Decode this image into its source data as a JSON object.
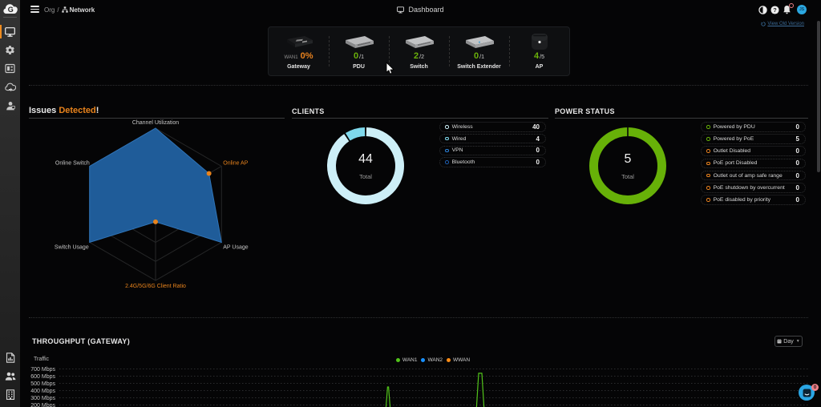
{
  "topbar": {
    "breadcrumb": {
      "org": "Org",
      "separator": "/",
      "network": "Network"
    },
    "title": "Dashboard",
    "user_initials": "JS"
  },
  "view_old_version": {
    "label": "View Old Version"
  },
  "device_summary": {
    "items": [
      {
        "type": "gateway",
        "label": "Gateway",
        "stat_prefix": "WAN1",
        "stat_value": "0%"
      },
      {
        "type": "pdu",
        "label": "PDU",
        "online": "0",
        "total": "/1"
      },
      {
        "type": "switch",
        "label": "Switch",
        "online": "2",
        "total": "/2"
      },
      {
        "type": "switch-extender",
        "label": "Switch Extender",
        "online": "0",
        "total": "/1"
      },
      {
        "type": "ap",
        "label": "AP",
        "online": "4",
        "total": "/5"
      }
    ]
  },
  "issues": {
    "title_normal": "Issues",
    "title_highlight": "Detected",
    "title_suffix": "!"
  },
  "clients": {
    "header": "CLIENTS",
    "center_value": "44",
    "center_label": "Total",
    "legend": [
      {
        "label": "Wireless",
        "value": "40",
        "color": "#cdeff7"
      },
      {
        "label": "Wired",
        "value": "4",
        "color": "#7fd9ec"
      },
      {
        "label": "VPN",
        "value": "0",
        "color": "#2b7fd4"
      },
      {
        "label": "Bluetooth",
        "value": "0",
        "color": "#1d5dae"
      }
    ]
  },
  "power": {
    "header": "POWER STATUS",
    "center_value": "5",
    "center_label": "Total",
    "legend": [
      {
        "label": "Powered by PDU",
        "value": "0",
        "color": "#67b108"
      },
      {
        "label": "Powered by PoE",
        "value": "5",
        "color": "#67b108"
      },
      {
        "label": "Outlet Disabled",
        "value": "0",
        "color": "#e8821e"
      },
      {
        "label": "PoE port Disabled",
        "value": "0",
        "color": "#e8821e"
      },
      {
        "label": "Outlet out of amp safe range",
        "value": "0",
        "color": "#e8821e"
      },
      {
        "label": "PoE shutdown by overcurrent",
        "value": "0",
        "color": "#e8821e"
      },
      {
        "label": "PoE disabled by priority",
        "value": "0",
        "color": "#e8821e"
      }
    ]
  },
  "throughput": {
    "header": "THROUGHPUT (GATEWAY)",
    "traffic_label": "Traffic",
    "range_label": "Day",
    "legend": [
      {
        "label": "WAN1",
        "color": "#52c41a"
      },
      {
        "label": "WAN2",
        "color": "#1890ff"
      },
      {
        "label": "WWAN",
        "color": "#fa8c16"
      }
    ]
  },
  "chat": {
    "badge": "0"
  },
  "chart_data": [
    {
      "type": "radar",
      "title": "Issues Detected!",
      "axes": [
        "Channel Utilization",
        "Online AP",
        "AP Usage",
        "2.4G/5G/6G Client Ratio",
        "Switch Usage",
        "Online Switch"
      ],
      "values": [
        1.0,
        0.81,
        1.0,
        0.23,
        1.0,
        1.0
      ],
      "issue_axes": [
        1,
        3
      ],
      "rings": [
        0.25,
        0.5,
        0.75,
        1.0
      ],
      "fill_color": "#1f5c99",
      "issue_color": "#e8831c"
    },
    {
      "type": "pie",
      "title": "CLIENTS",
      "slices": [
        {
          "label": "Wireless",
          "value": 40,
          "color": "#cdeff7"
        },
        {
          "label": "Wired",
          "value": 4,
          "color": "#7fd9ec"
        },
        {
          "label": "VPN",
          "value": 0,
          "color": "#2b7fd4"
        },
        {
          "label": "Bluetooth",
          "value": 0,
          "color": "#1d5dae"
        }
      ],
      "total": 44
    },
    {
      "type": "pie",
      "title": "POWER STATUS",
      "slices": [
        {
          "label": "Powered by PDU",
          "value": 0,
          "color": "#67b108"
        },
        {
          "label": "Powered by PoE",
          "value": 5,
          "color": "#67b108"
        },
        {
          "label": "Outlet Disabled",
          "value": 0,
          "color": "#e8821e"
        },
        {
          "label": "PoE port Disabled",
          "value": 0,
          "color": "#e8821e"
        },
        {
          "label": "Outlet out of amp safe range",
          "value": 0,
          "color": "#e8821e"
        },
        {
          "label": "PoE shutdown by overcurrent",
          "value": 0,
          "color": "#e8821e"
        },
        {
          "label": "PoE disabled by priority",
          "value": 0,
          "color": "#e8821e"
        }
      ],
      "total": 5
    },
    {
      "type": "line",
      "title": "THROUGHPUT (GATEWAY)",
      "ylabel": "Traffic",
      "y_ticks": [
        "700 Mbps",
        "600 Mbps",
        "500 Mbps",
        "400 Mbps",
        "300 Mbps",
        "200 Mbps"
      ],
      "series": [
        {
          "name": "WAN1",
          "color": "#52c41a",
          "spikes": [
            {
              "x": 484,
              "peak_mbps": 450,
              "flat_half": 0.6,
              "base_half": 3
            },
            {
              "x": 599,
              "peak_mbps": 640,
              "flat_half": 2,
              "base_half": 5
            }
          ]
        },
        {
          "name": "WAN2",
          "color": "#1890ff",
          "spikes": []
        },
        {
          "name": "WWAN",
          "color": "#fa8c16",
          "spikes": []
        }
      ]
    }
  ]
}
